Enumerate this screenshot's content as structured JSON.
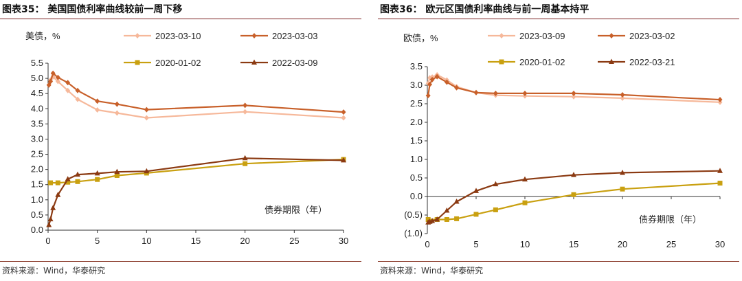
{
  "chart_data": [
    {
      "type": "line",
      "figure_title": "图表35：  美国国债利率曲线较前一周下移",
      "ylabel": "美债，%",
      "xlabel": "债券期限（年）",
      "source": "资料来源：Wind，华泰研究",
      "xlim": [
        0,
        30
      ],
      "ylim": [
        0,
        5.5
      ],
      "x_ticks": [
        "0",
        "5",
        "10",
        "15",
        "20",
        "25",
        "30"
      ],
      "y_ticks": [
        "0.0",
        "0.5",
        "1.0",
        "1.5",
        "2.0",
        "2.5",
        "3.0",
        "3.5",
        "4.0",
        "4.5",
        "5.0",
        "5.5"
      ],
      "series": [
        {
          "name": "2023-03-10",
          "color": "#f6b89a",
          "marker": "diamond",
          "x": [
            0.083,
            0.25,
            0.5,
            1,
            2,
            3,
            5,
            7,
            10,
            20,
            30
          ],
          "y": [
            4.78,
            4.95,
            5.05,
            4.9,
            4.6,
            4.31,
            3.96,
            3.86,
            3.7,
            3.9,
            3.7
          ]
        },
        {
          "name": "2023-03-03",
          "color": "#c8602a",
          "marker": "diamond",
          "x": [
            0.083,
            0.25,
            0.5,
            1,
            2,
            3,
            5,
            7,
            10,
            20,
            30
          ],
          "y": [
            4.78,
            4.9,
            5.17,
            5.03,
            4.86,
            4.6,
            4.25,
            4.15,
            3.97,
            4.11,
            3.89
          ]
        },
        {
          "name": "2020-01-02",
          "color": "#c9a010",
          "marker": "square",
          "x": [
            0.25,
            1,
            2,
            3,
            5,
            7,
            10,
            20,
            30
          ],
          "y": [
            1.56,
            1.56,
            1.58,
            1.6,
            1.67,
            1.8,
            1.88,
            2.19,
            2.33
          ]
        },
        {
          "name": "2022-03-09",
          "color": "#8b3a12",
          "marker": "triangle",
          "x": [
            0.083,
            0.25,
            0.5,
            1,
            2,
            3,
            5,
            7,
            10,
            20,
            30
          ],
          "y": [
            0.17,
            0.36,
            0.73,
            1.16,
            1.68,
            1.83,
            1.87,
            1.92,
            1.94,
            2.37,
            2.3
          ]
        }
      ]
    },
    {
      "type": "line",
      "figure_title": "图表36：  欧元区国债利率曲线与前一周基本持平",
      "ylabel": "欧债，%",
      "xlabel": "债券期限（年）",
      "source": "资料来源：Wind，华泰研究",
      "xlim": [
        0,
        30
      ],
      "ylim": [
        -1.0,
        3.5
      ],
      "x_ticks": [
        "0",
        "5",
        "10",
        "15",
        "20",
        "25",
        "30"
      ],
      "y_ticks": [
        "(1.0)",
        "(0.5)",
        "0.0",
        "0.5",
        "1.0",
        "1.5",
        "2.0",
        "2.5",
        "3.0",
        "3.5"
      ],
      "series": [
        {
          "name": "2023-03-09",
          "color": "#f6b89a",
          "marker": "diamond",
          "x": [
            0.083,
            0.25,
            0.5,
            1,
            2,
            3,
            5,
            7,
            10,
            15,
            20,
            30
          ],
          "y": [
            3.05,
            3.2,
            3.22,
            3.28,
            3.14,
            2.96,
            2.8,
            2.73,
            2.71,
            2.69,
            2.65,
            2.54
          ]
        },
        {
          "name": "2023-03-02",
          "color": "#c8602a",
          "marker": "diamond",
          "x": [
            0.083,
            0.25,
            0.5,
            1,
            2,
            3,
            5,
            7,
            10,
            15,
            20,
            30
          ],
          "y": [
            2.72,
            3.02,
            3.15,
            3.23,
            3.08,
            2.93,
            2.8,
            2.78,
            2.78,
            2.78,
            2.74,
            2.61
          ]
        },
        {
          "name": "2020-01-02",
          "color": "#c9a010",
          "marker": "square",
          "x": [
            0.083,
            1,
            2,
            3,
            5,
            7,
            10,
            15,
            20,
            30
          ],
          "y": [
            -0.62,
            -0.62,
            -0.62,
            -0.6,
            -0.48,
            -0.36,
            -0.17,
            0.05,
            0.2,
            0.36
          ]
        },
        {
          "name": "2022-03-21",
          "color": "#8b3a12",
          "marker": "triangle",
          "x": [
            0.083,
            0.25,
            0.5,
            1,
            2,
            3,
            5,
            7,
            10,
            15,
            20,
            30
          ],
          "y": [
            -0.7,
            -0.68,
            -0.66,
            -0.62,
            -0.38,
            -0.14,
            0.15,
            0.33,
            0.46,
            0.58,
            0.64,
            0.69
          ]
        }
      ]
    }
  ]
}
